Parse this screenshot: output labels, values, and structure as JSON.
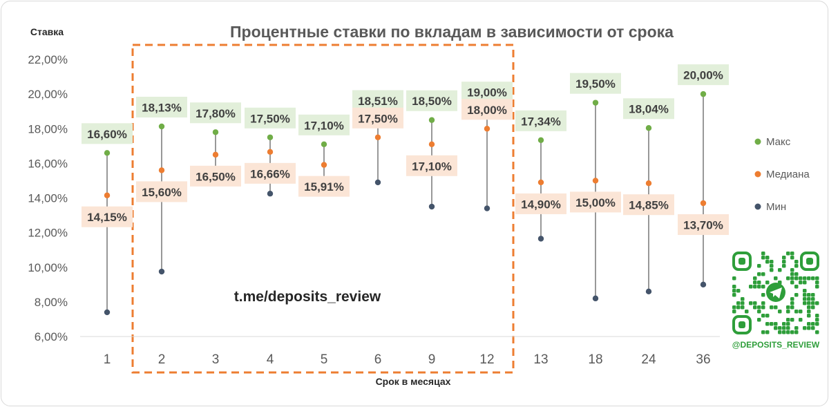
{
  "chart_data": {
    "type": "scatter",
    "title": "Процентные ставки по вкладам в зависимости от срока",
    "xlabel": "Срок в месяцах",
    "ylabel": "Ставка",
    "ylim": [
      6,
      22
    ],
    "yticks": [
      "6,00%",
      "8,00%",
      "10,00%",
      "12,00%",
      "14,00%",
      "16,00%",
      "18,00%",
      "20,00%",
      "22,00%"
    ],
    "categories": [
      "1",
      "2",
      "3",
      "4",
      "5",
      "6",
      "9",
      "12",
      "13",
      "18",
      "24",
      "36"
    ],
    "series": [
      {
        "name": "Макс",
        "color": "#70ad47",
        "values": [
          16.6,
          18.13,
          17.8,
          17.5,
          17.1,
          18.51,
          18.5,
          19.0,
          17.34,
          19.5,
          18.04,
          20.0
        ],
        "labels": [
          "16,60%",
          "18,13%",
          "17,80%",
          "17,50%",
          "17,10%",
          "18,51%",
          "18,50%",
          "19,00%",
          "17,34%",
          "19,50%",
          "18,04%",
          "20,00%"
        ]
      },
      {
        "name": "Медиана",
        "color": "#ed7d31",
        "values": [
          14.15,
          15.6,
          16.5,
          16.66,
          15.91,
          17.5,
          17.1,
          18.0,
          14.9,
          15.0,
          14.85,
          13.7
        ],
        "labels": [
          "14,15%",
          "15,60%",
          "16,50%",
          "16,66%",
          "15,91%",
          "17,50%",
          "17,10%",
          "18,00%",
          "14,90%",
          "15,00%",
          "14,85%",
          "13,70%"
        ]
      },
      {
        "name": "Мин",
        "color": "#44546a",
        "values": [
          7.4,
          9.75,
          14.9,
          14.25,
          14.35,
          14.9,
          13.5,
          13.4,
          11.65,
          8.2,
          8.6,
          9.0
        ]
      }
    ],
    "legend_position": "right",
    "grid": false,
    "highlight": {
      "from": "2",
      "to": "12",
      "color": "#ed7d31",
      "style": "dashed"
    },
    "annotation": "t.me/deposits_review"
  },
  "branding": {
    "qr_caption": "@DEPOSITS_REVIEW",
    "qr_icon": "telegram-icon",
    "brand_color": "#2e9e3a"
  }
}
